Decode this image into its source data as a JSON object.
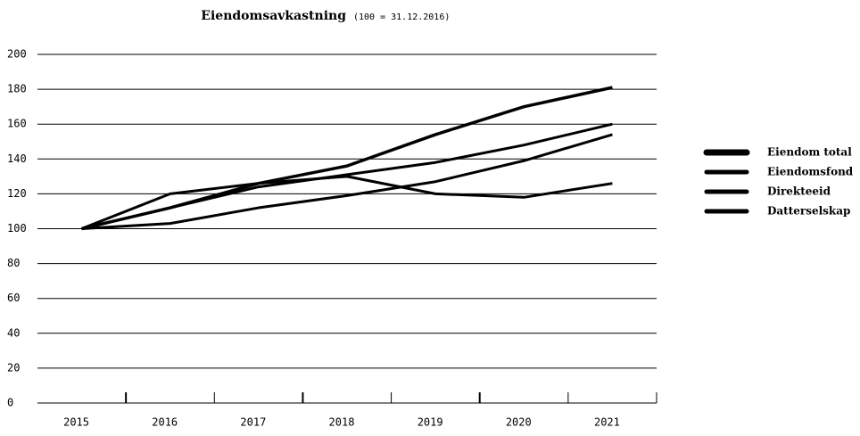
{
  "chart_data": {
    "type": "line",
    "title": "Eiendomsavkastning",
    "subtitle": "(100 = 31.12.2016)",
    "categories": [
      "2015",
      "2016",
      "2017",
      "2018",
      "2019",
      "2020",
      "2021"
    ],
    "series": [
      {
        "name": "Eiendom total",
        "color": "#000000",
        "values": [
          100,
          112,
          126,
          136,
          154,
          170,
          181
        ]
      },
      {
        "name": "Eiendomsfond",
        "color": "#000000",
        "values": [
          100,
          112,
          124,
          131,
          138,
          148,
          160
        ]
      },
      {
        "name": "Direkteeid",
        "color": "#000000",
        "values": [
          100,
          103,
          112,
          119,
          127,
          139,
          154
        ]
      },
      {
        "name": "Datterselskap",
        "color": "#000000",
        "values": [
          100,
          120,
          126,
          130,
          120,
          118,
          126
        ]
      }
    ],
    "ylim": [
      0,
      200
    ],
    "yticks": [
      0,
      20,
      40,
      60,
      80,
      100,
      120,
      140,
      160,
      180,
      200
    ],
    "grid": true,
    "legend": "right"
  }
}
